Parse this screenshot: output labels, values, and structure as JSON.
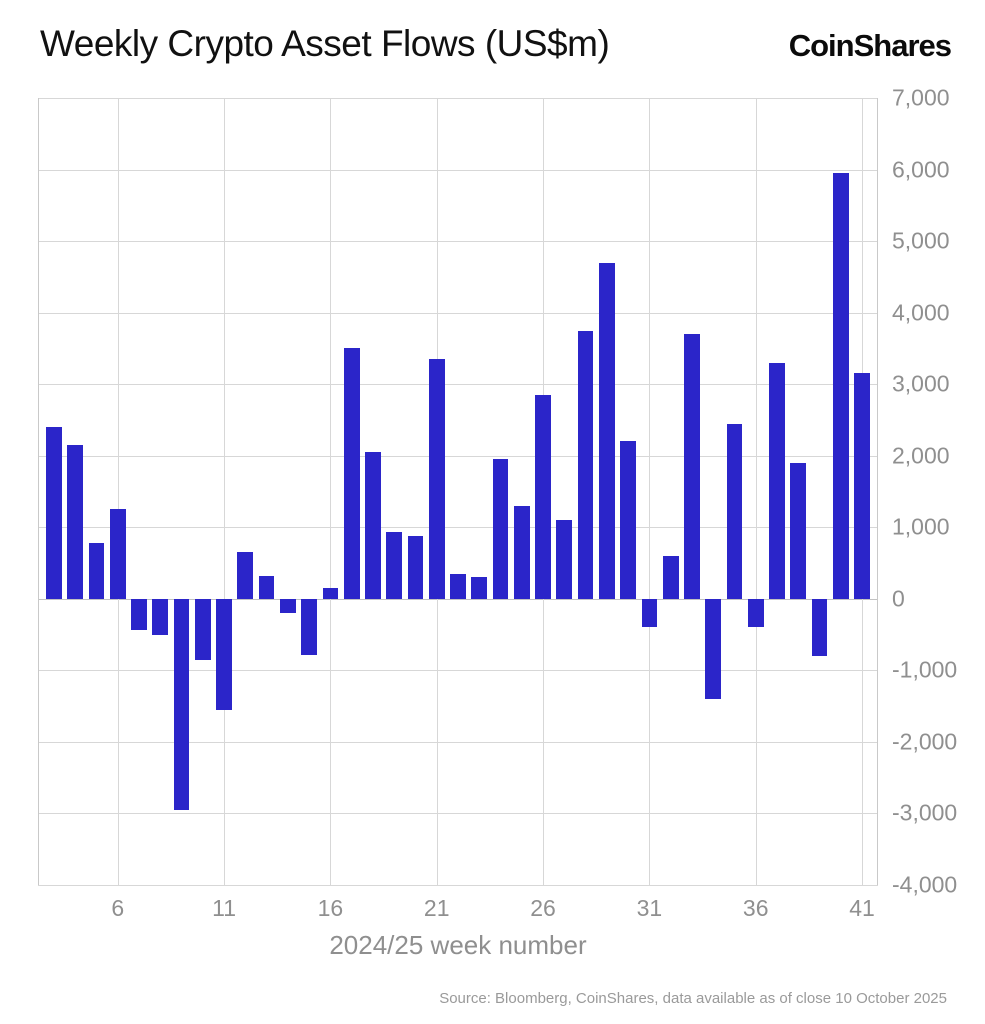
{
  "header": {
    "logo_text": "CoinShares"
  },
  "chart_data": {
    "type": "bar",
    "title": "Weekly Crypto Asset Flows (US$m)",
    "xlabel": "2024/25 week number",
    "ylabel": "",
    "ylim": [
      -4000,
      7000
    ],
    "grid": true,
    "legend": false,
    "bar_color": "#2b25c9",
    "axis_text_color": "#8f8f8f",
    "gridline_color": "#d7d7d7",
    "weeks": [
      3,
      4,
      5,
      6,
      7,
      8,
      9,
      10,
      11,
      12,
      13,
      14,
      15,
      16,
      17,
      18,
      19,
      20,
      21,
      22,
      23,
      24,
      25,
      26,
      27,
      28,
      29,
      30,
      31,
      32,
      33,
      34,
      35,
      36,
      37,
      38,
      39,
      40,
      41
    ],
    "values": [
      2400,
      2150,
      780,
      1250,
      -430,
      -500,
      -2950,
      -850,
      -1550,
      650,
      320,
      -200,
      -780,
      150,
      3500,
      2050,
      930,
      880,
      3350,
      350,
      300,
      1950,
      1300,
      2850,
      1100,
      3750,
      4700,
      2200,
      -400,
      600,
      3700,
      -1400,
      2450,
      -400,
      3300,
      1900,
      -800,
      5950,
      3150
    ],
    "xticks": [
      6,
      11,
      16,
      21,
      26,
      31,
      36,
      41
    ],
    "yticks": [
      7000,
      6000,
      5000,
      4000,
      3000,
      2000,
      1000,
      0,
      -1000,
      -2000,
      -3000,
      -4000
    ],
    "ytick_labels": [
      "7,000",
      "6,000",
      "5,000",
      "4,000",
      "3,000",
      "2,000",
      "1,000",
      "0",
      "-1,000",
      "-2,000",
      "-3,000",
      "-4,000"
    ]
  },
  "footer": {
    "source": "Source: Bloomberg, CoinShares, data available as of close 10 October 2025"
  }
}
